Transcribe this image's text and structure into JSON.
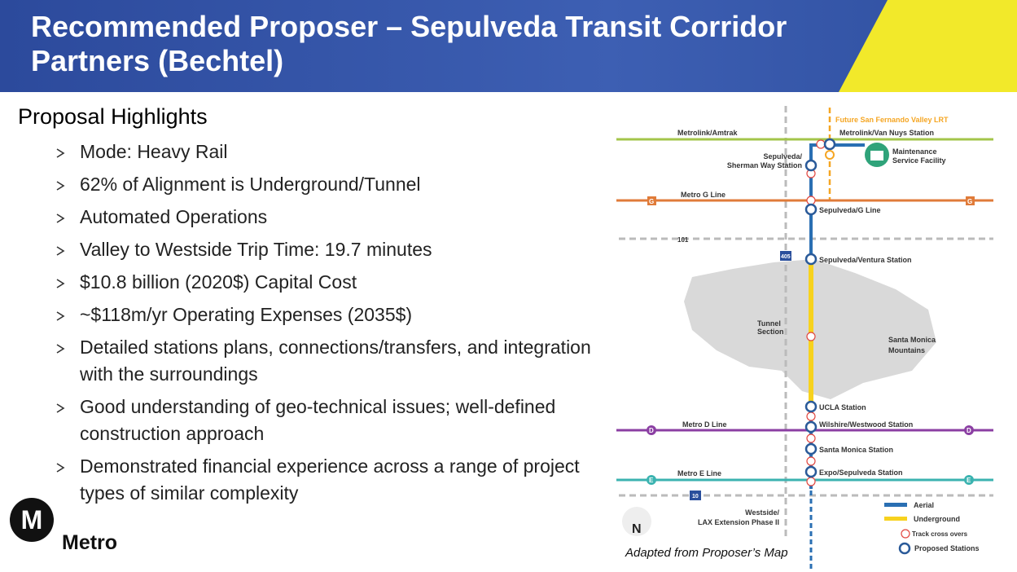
{
  "header": {
    "title": "Recommended Proposer – Sepulveda Transit Corridor Partners (Bechtel)"
  },
  "highlights": {
    "heading": "Proposal Highlights",
    "items": [
      "Mode: Heavy Rail",
      "62% of Alignment is Underground/Tunnel",
      "Automated Operations",
      "Valley to Westside Trip Time: 19.7 minutes",
      "$10.8 billion (2020$) Capital Cost",
      "~$118m/yr Operating Expenses (2035$)",
      "Detailed stations plans, connections/transfers, and integration with the surroundings",
      "Good understanding of geo-technical issues; well-defined construction approach",
      "Demonstrated financial experience across a range of project types of similar complexity"
    ]
  },
  "map": {
    "labels": {
      "future_lrt": "Future San Fernando Valley LRT",
      "metrolink": "Metrolink/Amtrak",
      "van_nuys": "Metrolink/Van Nuys Station",
      "sherman_way": [
        "Sepulveda/",
        "Sherman Way Station"
      ],
      "msf": [
        "Maintenance",
        "Service Facility"
      ],
      "g_line": "Metro G Line",
      "g_badge": "G",
      "sepulveda_g": "Sepulveda/G Line",
      "hwy101": "101",
      "hwy405": "405",
      "ventura": "Sepulveda/Ventura Station",
      "tunnel": [
        "Tunnel",
        "Section"
      ],
      "mountains": [
        "Santa Monica",
        "Mountains"
      ],
      "ucla": "UCLA Station",
      "d_line": "Metro D Line",
      "d_badge": "D",
      "wilshire": "Wilshire/Westwood Station",
      "santa_monica": "Santa Monica Station",
      "e_line": "Metro E Line",
      "e_badge": "E",
      "expo": "Expo/Sepulveda Station",
      "hwy10": "10",
      "lax": [
        "Westside/",
        "LAX Extension Phase II"
      ],
      "north": "N"
    },
    "legend": [
      "Aerial",
      "Underground",
      "Track cross overs",
      "Proposed Stations"
    ],
    "caption": "Adapted from Proposer’s Map"
  },
  "logo": {
    "mark": "M",
    "name": "Metro"
  }
}
